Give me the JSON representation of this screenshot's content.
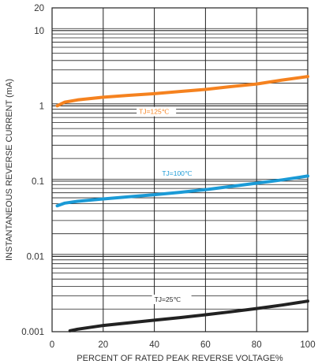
{
  "chart_data": {
    "type": "line",
    "title": "",
    "xlabel": "PERCENT OF RATED PEAK REVERSE VOLTAGE%",
    "ylabel": "INSTANTANEOUS REVERSE CURRENT (mA)",
    "xlim": [
      0,
      100
    ],
    "ylim": [
      0.001,
      20
    ],
    "yscale": "log",
    "grid": true,
    "x_ticks": [
      "0",
      "20",
      "40",
      "60",
      "80",
      "100"
    ],
    "y_ticks": [
      "0.001",
      "0.01",
      "0.1",
      "1",
      "10",
      "20"
    ],
    "series": [
      {
        "name": "TJ=125℃",
        "color": "#f5821f",
        "x": [
          2,
          5,
          10,
          20,
          30,
          40,
          50,
          60,
          70,
          80,
          90,
          100
        ],
        "y": [
          1.0,
          1.12,
          1.2,
          1.3,
          1.38,
          1.45,
          1.55,
          1.65,
          1.8,
          1.95,
          2.2,
          2.45
        ]
      },
      {
        "name": "TJ=100℃",
        "color": "#1a9ad6",
        "x": [
          2,
          5,
          10,
          20,
          30,
          40,
          50,
          60,
          70,
          80,
          90,
          100
        ],
        "y": [
          0.047,
          0.051,
          0.054,
          0.058,
          0.062,
          0.066,
          0.071,
          0.077,
          0.085,
          0.094,
          0.104,
          0.117
        ]
      },
      {
        "name": "TJ=25℃",
        "color": "#222222",
        "x": [
          7,
          10,
          20,
          30,
          40,
          50,
          60,
          70,
          80,
          90,
          100
        ],
        "y": [
          0.00103,
          0.00108,
          0.00121,
          0.00131,
          0.00142,
          0.00154,
          0.00168,
          0.00184,
          0.00203,
          0.00226,
          0.00255
        ]
      }
    ]
  }
}
